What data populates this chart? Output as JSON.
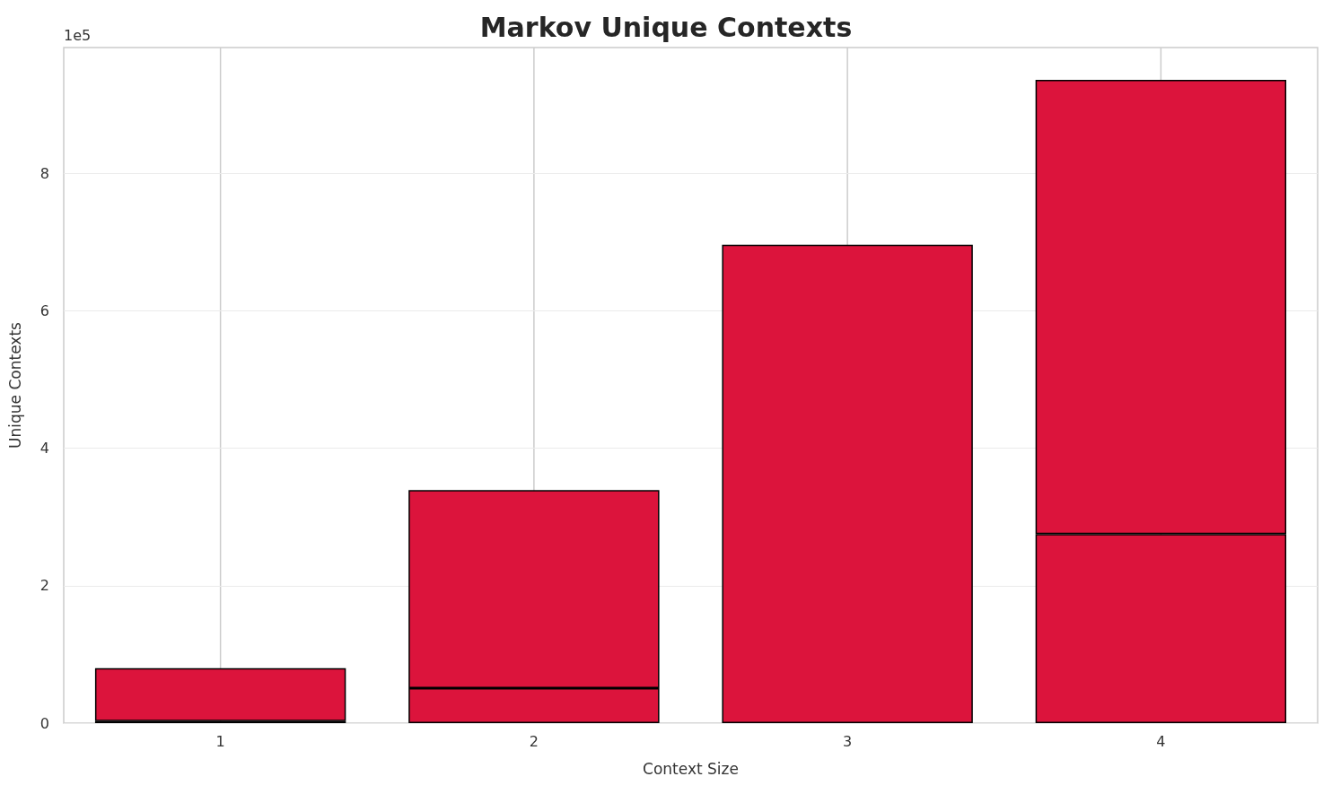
{
  "chart_data": {
    "type": "bar",
    "title": "Markov Unique Contexts",
    "xlabel": "Context Size",
    "ylabel": "Unique Contexts",
    "categories": [
      "1",
      "2",
      "3",
      "4"
    ],
    "stacked": true,
    "series": [
      {
        "color": "#dc143c",
        "values": [
          0.03,
          0.51,
          null,
          2.75
        ]
      },
      {
        "color": "#dc143c",
        "values": [
          0.77,
          2.88,
          6.96,
          6.61
        ]
      }
    ],
    "ylim": [
      0,
      9.83
    ],
    "yticks": [
      0,
      2,
      4,
      6,
      8
    ],
    "annotations": [
      "1e5"
    ],
    "grid": true
  }
}
